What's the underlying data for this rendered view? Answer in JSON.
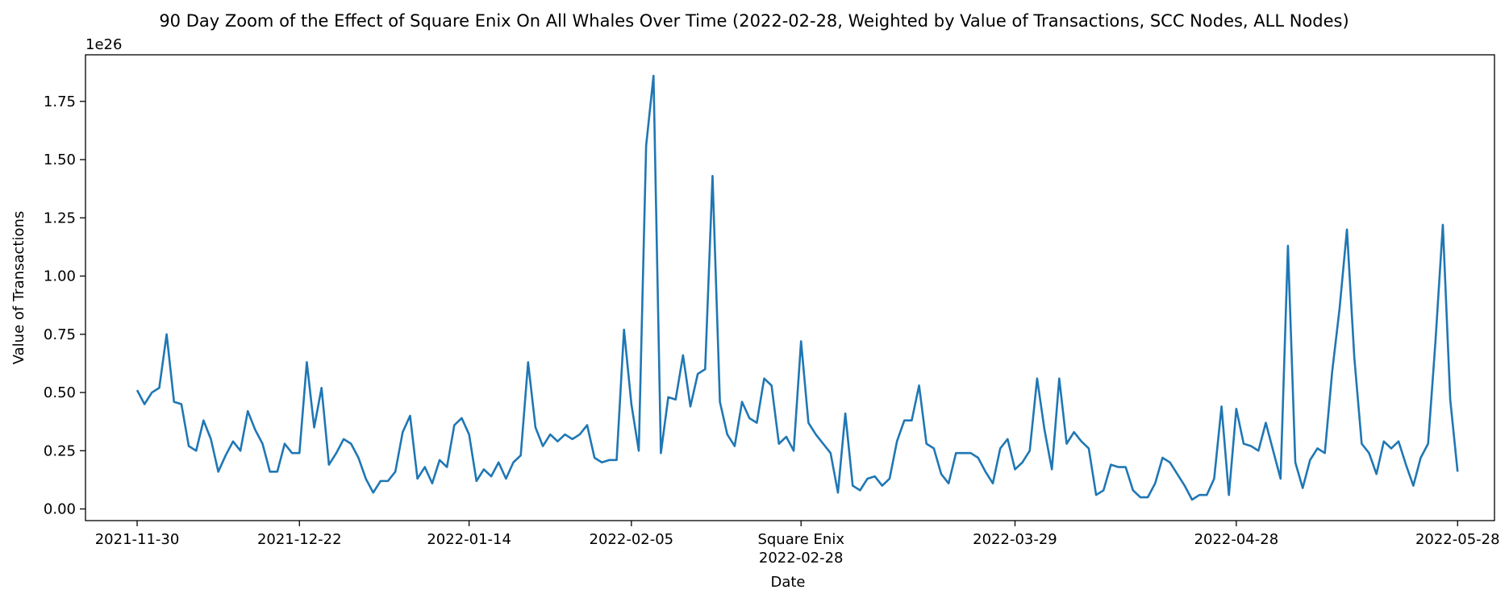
{
  "chart_data": {
    "type": "line",
    "title": "90 Day Zoom of the Effect of Square Enix On All Whales Over Time (2022-02-28, Weighted by Value of Transactions, SCC Nodes, ALL Nodes)",
    "xlabel": "Date",
    "ylabel": "Value of Transactions",
    "y_exponent_label": "1e26",
    "x_range": [
      "2021-11-23",
      "2022-06-02"
    ],
    "ylim": [
      -0.05,
      1.95
    ],
    "y_ticks": [
      "0.00",
      "0.25",
      "0.50",
      "0.75",
      "1.00",
      "1.25",
      "1.50",
      "1.75"
    ],
    "x_ticks": [
      {
        "date": "2021-11-30",
        "label": "2021-11-30"
      },
      {
        "date": "2021-12-22",
        "label": "2021-12-22"
      },
      {
        "date": "2022-01-14",
        "label": "2022-01-14"
      },
      {
        "date": "2022-02-05",
        "label": "2022-02-05"
      },
      {
        "date": "2022-02-28",
        "label": "2022-02-28",
        "annotation": "Square Enix"
      },
      {
        "date": "2022-03-29",
        "label": "2022-03-29"
      },
      {
        "date": "2022-04-28",
        "label": "2022-04-28"
      },
      {
        "date": "2022-05-28",
        "label": "2022-05-28"
      }
    ],
    "grid": false,
    "line_color": "#1f77b4",
    "series": [
      {
        "start_date": "2021-11-30",
        "step_days": 1,
        "values": [
          0.51,
          0.45,
          0.5,
          0.52,
          0.75,
          0.46,
          0.45,
          0.27,
          0.25,
          0.38,
          0.3,
          0.16,
          0.23,
          0.29,
          0.25,
          0.42,
          0.34,
          0.28,
          0.16,
          0.16,
          0.28,
          0.24,
          0.24,
          0.63,
          0.35,
          0.52,
          0.19,
          0.24,
          0.3,
          0.28,
          0.22,
          0.13,
          0.07,
          0.12,
          0.12,
          0.16,
          0.33,
          0.4,
          0.13,
          0.18,
          0.11,
          0.21,
          0.18,
          0.36,
          0.39,
          0.32,
          0.12,
          0.17,
          0.14,
          0.2,
          0.13,
          0.2,
          0.23,
          0.63,
          0.35,
          0.27,
          0.32,
          0.29,
          0.32,
          0.3,
          0.32,
          0.36,
          0.22,
          0.2,
          0.21,
          0.21,
          0.77,
          0.45,
          0.25,
          1.56,
          1.86,
          0.24,
          0.48,
          0.47,
          0.66,
          0.44,
          0.58,
          0.6,
          1.43,
          0.46,
          0.32,
          0.27,
          0.46,
          0.39,
          0.37,
          0.56,
          0.53,
          0.28,
          0.31,
          0.25,
          0.72,
          0.37,
          0.32,
          0.28,
          0.24,
          0.07,
          0.41,
          0.1,
          0.08,
          0.13,
          0.14,
          0.1,
          0.13,
          0.29,
          0.38,
          0.38,
          0.53,
          0.28,
          0.26,
          0.15,
          0.11,
          0.24,
          0.24,
          0.24,
          0.22,
          0.16,
          0.11,
          0.26,
          0.3,
          0.17,
          0.2,
          0.25,
          0.56,
          0.34,
          0.17,
          0.56,
          0.28,
          0.33,
          0.29,
          0.26,
          0.06,
          0.08,
          0.19,
          0.18,
          0.18,
          0.08,
          0.05,
          0.05,
          0.11,
          0.22,
          0.2,
          0.15,
          0.1,
          0.04,
          0.06,
          0.06,
          0.13,
          0.44,
          0.06,
          0.43,
          0.28,
          0.27,
          0.25,
          0.37,
          0.25,
          0.13,
          1.13,
          0.2,
          0.09,
          0.21,
          0.26,
          0.24,
          0.59,
          0.86,
          1.2,
          0.65,
          0.28,
          0.24,
          0.15,
          0.29,
          0.26,
          0.29,
          0.19,
          0.1,
          0.22,
          0.28,
          0.72,
          1.22,
          0.47,
          0.16
        ]
      }
    ]
  }
}
